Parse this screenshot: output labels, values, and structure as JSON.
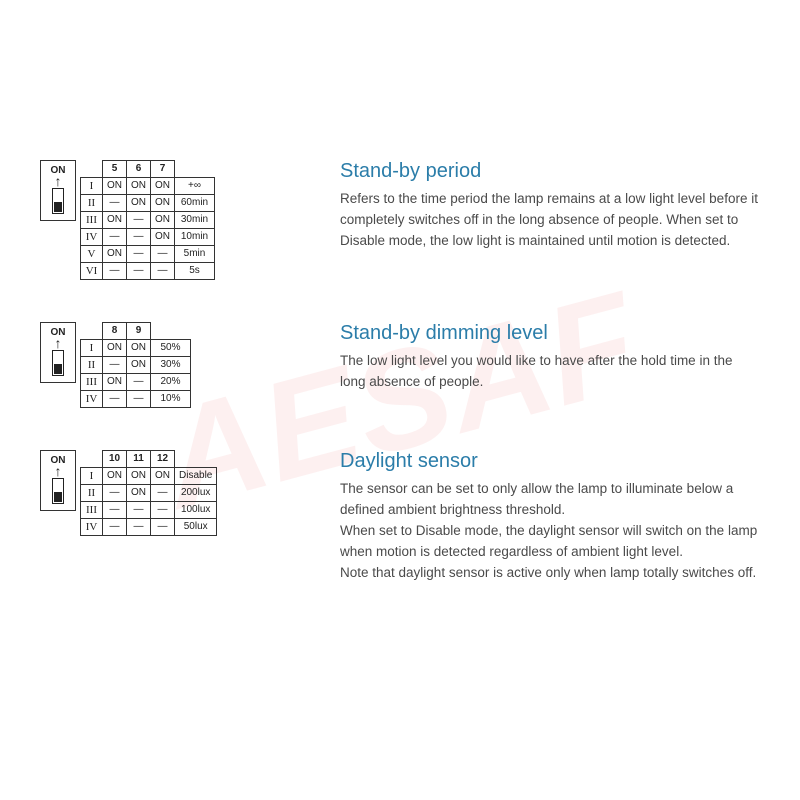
{
  "switch_label": "ON",
  "sections": [
    {
      "title": "Stand-by period",
      "body": "Refers to the time period the lamp remains at a low light level before it completely switches off in the long absence of people. When set to Disable mode, the low light is maintained until motion is detected.",
      "columns": [
        "5",
        "6",
        "7"
      ],
      "rows": [
        {
          "roman": "I",
          "cells": [
            "ON",
            "ON",
            "ON"
          ],
          "value": "+∞"
        },
        {
          "roman": "II",
          "cells": [
            "—",
            "ON",
            "ON"
          ],
          "value": "60min"
        },
        {
          "roman": "III",
          "cells": [
            "ON",
            "—",
            "ON"
          ],
          "value": "30min"
        },
        {
          "roman": "IV",
          "cells": [
            "—",
            "—",
            "ON"
          ],
          "value": "10min"
        },
        {
          "roman": "V",
          "cells": [
            "ON",
            "—",
            "—"
          ],
          "value": "5min"
        },
        {
          "roman": "VI",
          "cells": [
            "—",
            "—",
            "—"
          ],
          "value": "5s"
        }
      ]
    },
    {
      "title": "Stand-by dimming level",
      "body": "The low light level you would like to have after the hold time in the long absence of people.",
      "columns": [
        "8",
        "9"
      ],
      "rows": [
        {
          "roman": "I",
          "cells": [
            "ON",
            "ON"
          ],
          "value": "50%"
        },
        {
          "roman": "II",
          "cells": [
            "—",
            "ON"
          ],
          "value": "30%"
        },
        {
          "roman": "III",
          "cells": [
            "ON",
            "—"
          ],
          "value": "20%"
        },
        {
          "roman": "IV",
          "cells": [
            "—",
            "—"
          ],
          "value": "10%"
        }
      ]
    },
    {
      "title": "Daylight sensor",
      "body": "The sensor can be set to only allow the lamp to illuminate below a defined ambient brightness threshold.\nWhen set to Disable mode, the daylight sensor will switch on the lamp when motion is detected regardless of ambient light level.\nNote that daylight sensor is active only when lamp totally switches off.",
      "columns": [
        "10",
        "11",
        "12"
      ],
      "rows": [
        {
          "roman": "I",
          "cells": [
            "ON",
            "ON",
            "ON"
          ],
          "value": "Disable"
        },
        {
          "roman": "II",
          "cells": [
            "—",
            "ON",
            "—"
          ],
          "value": "200lux"
        },
        {
          "roman": "III",
          "cells": [
            "—",
            "—",
            "—"
          ],
          "value": "100lux"
        },
        {
          "roman": "IV",
          "cells": [
            "—",
            "—",
            "—"
          ],
          "value": "50lux"
        }
      ]
    }
  ]
}
